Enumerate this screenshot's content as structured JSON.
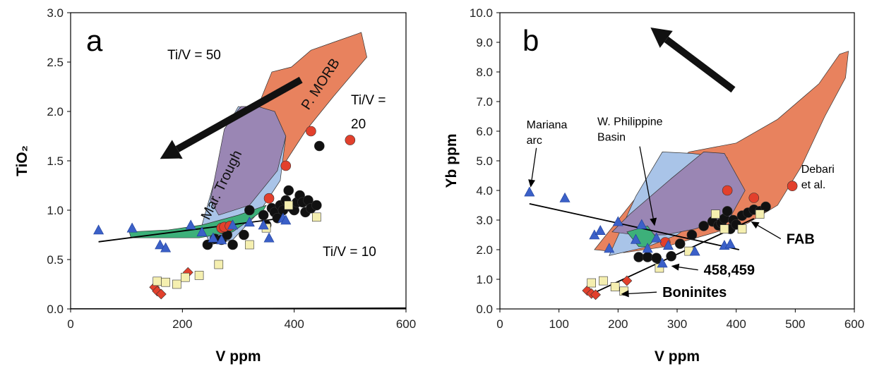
{
  "chart_data": [
    {
      "panel_label": "a",
      "type": "scatter",
      "xlabel": "V ppm",
      "ylabel": "TiO₂",
      "xlim": [
        0,
        600
      ],
      "ylim": [
        0,
        3.0
      ],
      "xticks": [
        "0",
        "200",
        "400",
        "600"
      ],
      "yticks": [
        "0.0",
        "0.5",
        "1.0",
        "1.5",
        "2.0",
        "2.5",
        "3.0"
      ],
      "ratio_lines": [
        {
          "label": "Ti/V = 50",
          "ratio": 50
        },
        {
          "label": "Ti/V =",
          "label2": "20",
          "ratio": 20
        },
        {
          "label": "Ti/V = 10",
          "ratio": 10
        }
      ],
      "fields": [
        {
          "name": "P. MORB",
          "color": "#e8825e",
          "points": [
            [
              310,
              1.8
            ],
            [
              335,
              2.05
            ],
            [
              360,
              2.4
            ],
            [
              395,
              2.45
            ],
            [
              430,
              2.62
            ],
            [
              470,
              2.7
            ],
            [
              520,
              2.8
            ],
            [
              530,
              2.55
            ],
            [
              470,
              2.15
            ],
            [
              420,
              1.8
            ],
            [
              380,
              1.45
            ],
            [
              330,
              1.2
            ]
          ]
        },
        {
          "name": "Mar. Trough",
          "color": "#a9c4e8",
          "points": [
            [
              275,
              1.65
            ],
            [
              285,
              1.9
            ],
            [
              300,
              2.05
            ],
            [
              330,
              2.02
            ],
            [
              365,
              2.0
            ],
            [
              385,
              1.75
            ],
            [
              375,
              1.3
            ],
            [
              340,
              1.0
            ],
            [
              290,
              0.7
            ],
            [
              250,
              0.65
            ],
            [
              235,
              0.85
            ]
          ]
        },
        {
          "name": "",
          "color": "#9a86b4",
          "points": [
            [
              275,
              1.82
            ],
            [
              290,
              1.95
            ],
            [
              305,
              2.05
            ],
            [
              335,
              2.05
            ],
            [
              365,
              2.0
            ],
            [
              385,
              1.75
            ],
            [
              370,
              1.4
            ],
            [
              320,
              1.05
            ],
            [
              265,
              0.95
            ],
            [
              250,
              1.1
            ]
          ]
        },
        {
          "name": "",
          "color": "#3db07a",
          "points": [
            [
              105,
              0.78
            ],
            [
              175,
              0.8
            ],
            [
              235,
              0.85
            ],
            [
              300,
              0.95
            ],
            [
              350,
              1.05
            ],
            [
              345,
              1.0
            ],
            [
              290,
              0.78
            ],
            [
              230,
              0.72
            ],
            [
              170,
              0.72
            ],
            [
              108,
              0.72
            ]
          ]
        }
      ],
      "trend_line": {
        "x": [
          50,
          380
        ],
        "y": [
          0.68,
          0.92
        ]
      },
      "arrow": {
        "from": [
          412,
          2.32
        ],
        "to": [
          160,
          1.52
        ]
      },
      "series": [
        {
          "marker": "circle",
          "color": "#111111",
          "x": [
            245,
            258,
            270,
            280,
            290,
            310,
            320,
            345,
            350,
            360,
            365,
            370,
            375,
            380,
            385,
            390,
            395,
            400,
            405,
            410,
            415,
            420,
            425,
            430,
            440,
            445
          ],
          "y": [
            0.65,
            0.71,
            0.7,
            0.75,
            0.65,
            0.75,
            1.0,
            0.95,
            0.85,
            1.02,
            0.98,
            0.92,
            1.05,
            1.0,
            1.1,
            1.2,
            1.03,
            1.0,
            1.08,
            1.15,
            1.08,
            0.98,
            1.1,
            1.02,
            1.05,
            1.65
          ]
        },
        {
          "marker": "circle",
          "color": "#e2402c",
          "x": [
            270,
            275,
            285,
            355,
            385,
            430,
            500
          ],
          "y": [
            0.82,
            0.83,
            0.84,
            1.12,
            1.45,
            1.8,
            1.71
          ]
        },
        {
          "marker": "diamond",
          "color": "#e2402c",
          "x": [
            150,
            155,
            162,
            210
          ],
          "y": [
            0.22,
            0.18,
            0.15,
            0.37
          ]
        },
        {
          "marker": "square",
          "color": "#f5efb0",
          "x": [
            155,
            170,
            190,
            205,
            230,
            265,
            320,
            350,
            390,
            440
          ],
          "y": [
            0.28,
            0.27,
            0.25,
            0.32,
            0.34,
            0.45,
            0.65,
            0.82,
            1.05,
            0.93
          ]
        },
        {
          "marker": "triangle",
          "color": "#3b60c8",
          "x": [
            50,
            110,
            160,
            170,
            215,
            235,
            255,
            270,
            290,
            320,
            345,
            355,
            380,
            385
          ],
          "y": [
            0.8,
            0.82,
            0.65,
            0.62,
            0.85,
            0.78,
            0.72,
            0.7,
            0.85,
            0.88,
            0.85,
            0.72,
            0.92,
            0.9
          ]
        }
      ]
    },
    {
      "panel_label": "b",
      "type": "scatter",
      "xlabel": "V ppm",
      "ylabel": "Yb ppm",
      "xlim": [
        0,
        600
      ],
      "ylim": [
        0,
        10.0
      ],
      "xticks": [
        "0",
        "100",
        "200",
        "300",
        "400",
        "500",
        "600"
      ],
      "yticks": [
        "0.0",
        "1.0",
        "2.0",
        "3.0",
        "4.0",
        "5.0",
        "6.0",
        "7.0",
        "8.0",
        "9.0",
        "10.0"
      ],
      "fields": [
        {
          "name": "",
          "color": "#e8825e",
          "points": [
            [
              160,
              2.0
            ],
            [
              240,
              4.0
            ],
            [
              320,
              5.3
            ],
            [
              400,
              5.6
            ],
            [
              470,
              6.4
            ],
            [
              540,
              7.6
            ],
            [
              575,
              8.6
            ],
            [
              590,
              8.7
            ],
            [
              585,
              7.8
            ],
            [
              550,
              6.5
            ],
            [
              510,
              4.8
            ],
            [
              470,
              3.5
            ],
            [
              420,
              2.9
            ],
            [
              350,
              2.5
            ],
            [
              280,
              2.1
            ],
            [
              210,
              1.9
            ]
          ]
        },
        {
          "name": "",
          "color": "#a9c4e8",
          "points": [
            [
              185,
              1.8
            ],
            [
              230,
              3.8
            ],
            [
              275,
              5.3
            ],
            [
              325,
              5.25
            ],
            [
              385,
              5.1
            ],
            [
              340,
              3.1
            ],
            [
              300,
              2.5
            ],
            [
              250,
              2.1
            ]
          ]
        },
        {
          "name": "",
          "color": "#9a86b4",
          "points": [
            [
              190,
              2.6
            ],
            [
              220,
              3.2
            ],
            [
              290,
              4.4
            ],
            [
              345,
              5.3
            ],
            [
              380,
              5.25
            ],
            [
              415,
              4.0
            ],
            [
              390,
              3.1
            ],
            [
              330,
              2.7
            ],
            [
              280,
              2.5
            ],
            [
              230,
              2.5
            ]
          ]
        },
        {
          "name": "",
          "color": "#3db07a",
          "points": [
            [
              215,
              2.6
            ],
            [
              250,
              2.8
            ],
            [
              265,
              2.4
            ],
            [
              250,
              2.1
            ],
            [
              235,
              2.1
            ]
          ]
        }
      ],
      "trend_lines": [
        {
          "x": [
            50,
            405
          ],
          "y": [
            3.55,
            2.0
          ]
        },
        {
          "x": [
            160,
            430
          ],
          "y": [
            0.55,
            3.05
          ]
        }
      ],
      "arrow": {
        "from": [
          395,
          7.4
        ],
        "to": [
          255,
          9.5
        ]
      },
      "annotations": [
        {
          "text": "Mariana",
          "text2": "arc",
          "at": [
            45,
            6.1
          ],
          "arrow_to": [
            52,
            4.1
          ],
          "weight": "normal"
        },
        {
          "text": "W. Philippine",
          "text2": "Basin",
          "at": [
            165,
            6.2
          ],
          "arrow_to": [
            262,
            2.8
          ],
          "weight": "normal"
        },
        {
          "text": "Debari",
          "text2": "et al.",
          "at": [
            510,
            4.6
          ],
          "arrow_to": null,
          "weight": "normal"
        },
        {
          "text": "FAB",
          "at": [
            485,
            2.2
          ],
          "arrow_to": [
            425,
            2.95
          ],
          "weight": "bold"
        },
        {
          "text": "458,459",
          "at": [
            345,
            1.15
          ],
          "arrow_to": [
            290,
            1.45
          ],
          "weight": "bold"
        },
        {
          "text": "Boninites",
          "at": [
            275,
            0.4
          ],
          "arrow_to": [
            205,
            0.5
          ],
          "weight": "bold"
        }
      ],
      "series": [
        {
          "marker": "circle",
          "color": "#111111",
          "x": [
            235,
            250,
            265,
            290,
            305,
            325,
            345,
            360,
            370,
            375,
            380,
            385,
            390,
            395,
            400,
            410,
            420,
            430,
            440,
            450
          ],
          "y": [
            1.75,
            1.75,
            1.72,
            1.78,
            2.2,
            2.5,
            2.8,
            2.95,
            2.82,
            2.9,
            3.05,
            3.3,
            2.7,
            3.0,
            2.85,
            3.15,
            3.25,
            3.35,
            3.3,
            3.45
          ]
        },
        {
          "marker": "circle",
          "color": "#e2402c",
          "x": [
            280,
            385,
            430,
            495
          ],
          "y": [
            2.25,
            4.0,
            3.75,
            4.15
          ]
        },
        {
          "marker": "diamond",
          "color": "#e2402c",
          "x": [
            148,
            155,
            162,
            215
          ],
          "y": [
            0.62,
            0.52,
            0.48,
            0.95
          ]
        },
        {
          "marker": "square",
          "color": "#f5efb0",
          "x": [
            155,
            175,
            195,
            210,
            270,
            320,
            365,
            380,
            410,
            440
          ],
          "y": [
            0.88,
            0.95,
            0.75,
            0.6,
            1.38,
            1.95,
            3.2,
            2.7,
            2.7,
            3.2
          ]
        },
        {
          "marker": "triangle",
          "color": "#3b60c8",
          "x": [
            50,
            110,
            160,
            170,
            185,
            200,
            230,
            240,
            250,
            265,
            275,
            285,
            330,
            380,
            390
          ],
          "y": [
            3.95,
            3.75,
            2.5,
            2.65,
            2.05,
            2.95,
            2.35,
            2.85,
            2.05,
            2.4,
            1.55,
            2.15,
            1.95,
            2.15,
            2.2
          ]
        }
      ]
    }
  ]
}
